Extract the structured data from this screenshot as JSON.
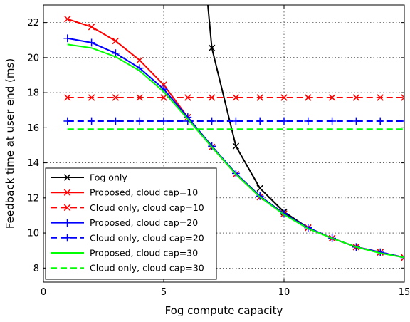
{
  "chart_data": {
    "type": "line",
    "title": "",
    "xlabel": "Fog compute capacity",
    "ylabel": "Feedback time at user end (ms)",
    "xlim": [
      0,
      15
    ],
    "ylim": [
      7.2,
      23
    ],
    "xticks": [
      0,
      5,
      10,
      15
    ],
    "yticks": [
      8,
      10,
      12,
      14,
      16,
      18,
      20,
      22
    ],
    "xtick_labels": [
      "0",
      "5",
      "10",
      "15"
    ],
    "ytick_labels": [
      "8",
      "10",
      "12",
      "14",
      "16",
      "18",
      "20",
      "22"
    ],
    "grid": true,
    "legend_placement": "bottom-left",
    "series": [
      {
        "name": "Fog only",
        "color": "#000000",
        "line": "solid",
        "marker": "x",
        "x": [
          6.8,
          7,
          8,
          9,
          10,
          11,
          12,
          13,
          14,
          15
        ],
        "y": [
          23.5,
          20.55,
          14.95,
          12.55,
          11.2,
          10.3,
          9.7,
          9.2,
          8.9,
          8.6
        ],
        "marker_x": [
          7,
          8,
          9,
          10,
          11,
          12,
          13,
          14,
          15
        ]
      },
      {
        "name": "Proposed, cloud cap=10",
        "color": "#ff0000",
        "line": "solid",
        "marker": "x",
        "x": [
          1,
          2,
          3,
          4,
          5,
          6,
          7,
          8,
          9,
          10,
          11,
          12,
          13,
          14,
          15
        ],
        "y": [
          22.2,
          21.75,
          20.95,
          19.85,
          18.45,
          16.6,
          14.9,
          13.35,
          12.05,
          11.1,
          10.3,
          9.7,
          9.2,
          8.9,
          8.6
        ]
      },
      {
        "name": "Cloud only, cloud cap=10",
        "color": "#ff0000",
        "line": "dashed",
        "marker": "x",
        "x": [
          1,
          2,
          3,
          4,
          5,
          6,
          7,
          8,
          9,
          10,
          11,
          12,
          13,
          14,
          15
        ],
        "y": [
          17.72,
          17.72,
          17.72,
          17.72,
          17.72,
          17.72,
          17.72,
          17.72,
          17.72,
          17.72,
          17.72,
          17.72,
          17.72,
          17.72,
          17.72
        ]
      },
      {
        "name": "Proposed, cloud cap=20",
        "color": "#0000ff",
        "line": "solid",
        "marker": "+",
        "x": [
          1,
          2,
          3,
          4,
          5,
          6,
          7,
          8,
          9,
          10,
          11,
          12,
          13,
          14,
          15
        ],
        "y": [
          21.1,
          20.85,
          20.25,
          19.4,
          18.2,
          16.6,
          14.95,
          13.4,
          12.1,
          11.1,
          10.3,
          9.7,
          9.2,
          8.9,
          8.6
        ]
      },
      {
        "name": "Cloud only, cloud cap=20",
        "color": "#0000ff",
        "line": "dashed",
        "marker": "+",
        "x": [
          1,
          2,
          3,
          4,
          5,
          6,
          7,
          8,
          9,
          10,
          11,
          12,
          13,
          14,
          15
        ],
        "y": [
          16.38,
          16.38,
          16.38,
          16.38,
          16.38,
          16.38,
          16.38,
          16.38,
          16.38,
          16.38,
          16.38,
          16.38,
          16.38,
          16.38,
          16.38
        ]
      },
      {
        "name": "Proposed, cloud cap=30",
        "color": "#00ff00",
        "line": "solid",
        "marker": "none",
        "x": [
          1,
          2,
          3,
          4,
          5,
          6,
          7,
          8,
          9,
          10,
          11,
          12,
          13,
          14,
          15
        ],
        "y": [
          20.75,
          20.55,
          20.05,
          19.25,
          18.05,
          16.5,
          14.9,
          13.35,
          12.05,
          11.05,
          10.25,
          9.7,
          9.2,
          8.85,
          8.6
        ]
      },
      {
        "name": "Cloud only, cloud cap=30",
        "color": "#00ff00",
        "line": "dashed",
        "marker": "none",
        "x": [
          1,
          15
        ],
        "y": [
          15.92,
          15.92
        ]
      }
    ]
  }
}
